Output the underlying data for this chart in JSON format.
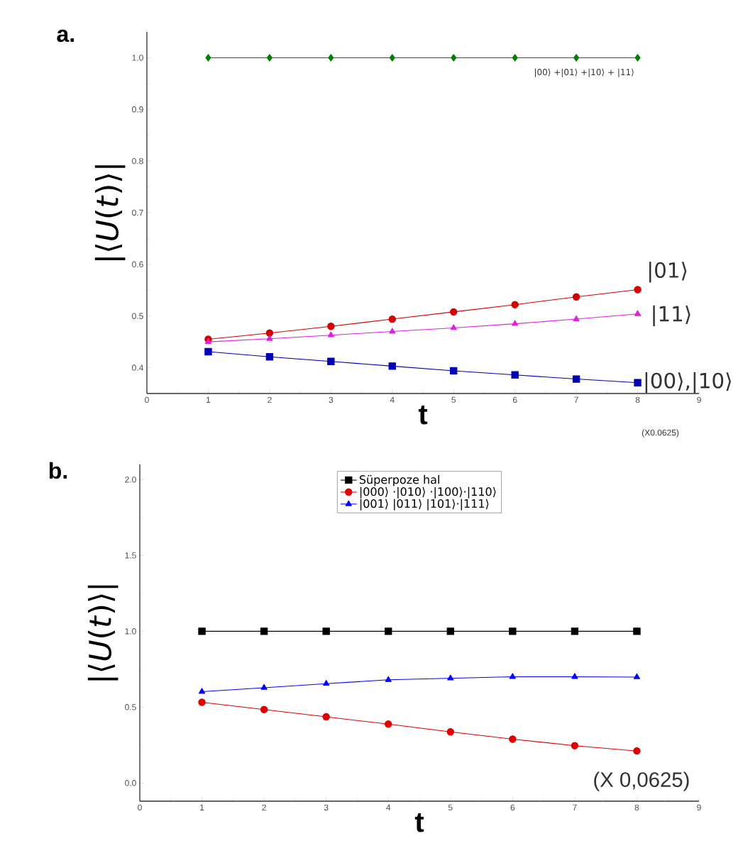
{
  "chart_data": [
    {
      "type": "line",
      "title": "a.",
      "xlabel": "t",
      "ylabel": "|⟨*U*(*t*)⟩|",
      "x": [
        1,
        2,
        3,
        4,
        5,
        6,
        7,
        8
      ],
      "xlim": [
        0,
        9
      ],
      "xticks": [
        0,
        1,
        2,
        3,
        4,
        5,
        6,
        7,
        8,
        9
      ],
      "ylim": [
        0.35,
        1.05
      ],
      "yticks": [
        0.4,
        0.5,
        0.6,
        0.7,
        0.8,
        0.9,
        {
          "value": 1,
          "label": "1.0"
        }
      ],
      "legend": false,
      "line_style": "solid",
      "annotations": [
        "(X0.0625)"
      ],
      "series": [
        {
          "name": "|00⟩ +|01⟩ +|10⟩ + |11⟩",
          "color": "#007f00",
          "marker": "diamond",
          "values": [
            1.0,
            1.0,
            1.0,
            1.0,
            1.0,
            1.0,
            1.0,
            1.0
          ]
        },
        {
          "name": "|01⟩",
          "color": "#d40000",
          "marker": "circle",
          "values": [
            0.455,
            0.467,
            0.48,
            0.494,
            0.508,
            0.522,
            0.537,
            0.551
          ]
        },
        {
          "name": "|11⟩",
          "color": "#e020e0",
          "marker": "triangle",
          "values": [
            0.45,
            0.456,
            0.463,
            0.47,
            0.477,
            0.485,
            0.494,
            0.504
          ]
        },
        {
          "name": "|00⟩,|10⟩",
          "color": "#0000b0",
          "marker": "square",
          "values": [
            0.431,
            0.421,
            0.412,
            0.403,
            0.394,
            0.386,
            0.378,
            0.371
          ]
        }
      ]
    },
    {
      "type": "line",
      "title": "b.",
      "xlabel": "t",
      "ylabel": "|⟨*U*(*t*)⟩|",
      "x": [
        1,
        2,
        3,
        4,
        5,
        6,
        7,
        8
      ],
      "xlim": [
        0,
        9
      ],
      "xticks": [
        0,
        1,
        2,
        3,
        4,
        5,
        6,
        7,
        8,
        9
      ],
      "ylim": [
        -0.12,
        2.1
      ],
      "yticks": [
        {
          "value": 0,
          "label": "0.0"
        },
        0.5,
        {
          "value": 1,
          "label": "1.0"
        },
        1.5,
        {
          "value": 2,
          "label": "2.0"
        }
      ],
      "legend": "top",
      "line_style": "solid",
      "annotations": [
        "(X 0,0625)"
      ],
      "series": [
        {
          "name": "Süperpoze hal",
          "color": "#000000",
          "marker": "square",
          "values": [
            1.0,
            1.0,
            1.0,
            1.0,
            1.0,
            1.0,
            1.0,
            1.0
          ]
        },
        {
          "name": "|000⟩ ·|010⟩ ·|100⟩·|110⟩",
          "color": "#e00000",
          "marker": "circle",
          "values": [
            0.532,
            0.484,
            0.436,
            0.388,
            0.337,
            0.289,
            0.246,
            0.211
          ]
        },
        {
          "name": "|001⟩ |011⟩ |101⟩·|111⟩",
          "color": "#0000ff",
          "marker": "triangle",
          "values": [
            0.602,
            0.628,
            0.655,
            0.68,
            0.69,
            0.7,
            0.7,
            0.698
          ]
        }
      ]
    }
  ]
}
